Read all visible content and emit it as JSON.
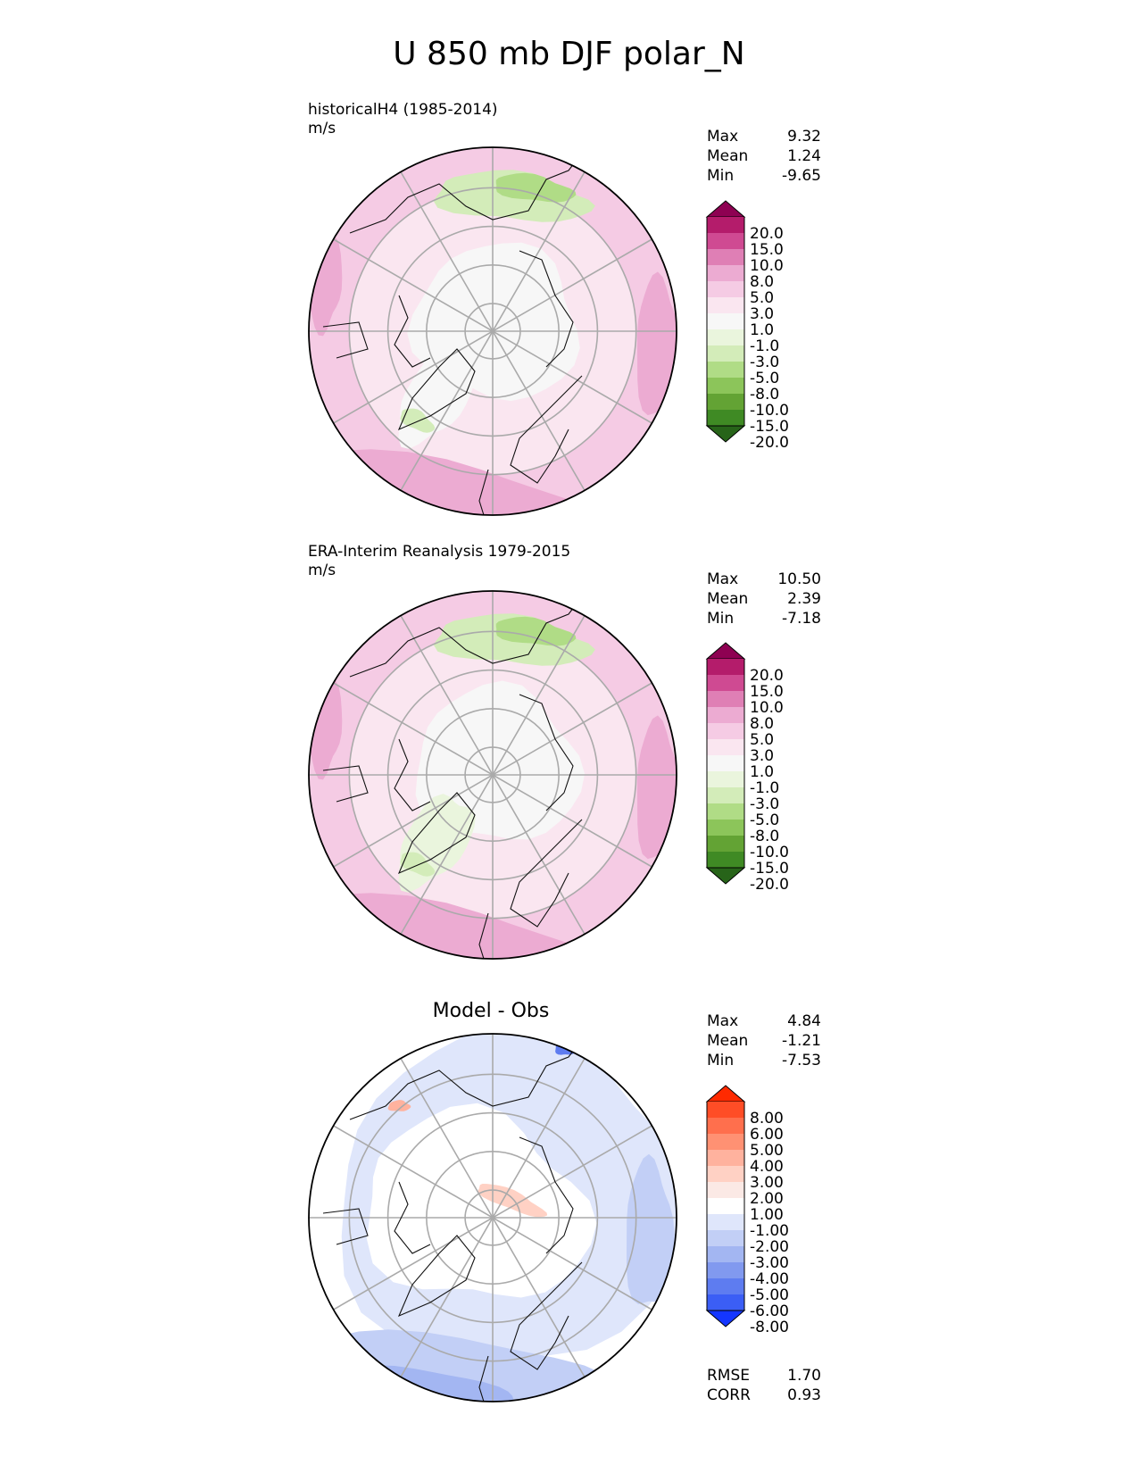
{
  "title": "U 850 mb DJF polar_N",
  "panels": [
    {
      "label_line1": "historicalH4 (1985-2014)",
      "label_line2": "m/s",
      "stats": {
        "max_label": "Max",
        "max": "9.32",
        "mean_label": "Mean",
        "mean": "1.24",
        "min_label": "Min",
        "min": "-9.65"
      },
      "colorbar_ticks": [
        "20.0",
        "15.0",
        "10.0",
        "8.0",
        "5.0",
        "3.0",
        "1.0",
        "-1.0",
        "-3.0",
        "-5.0",
        "-8.0",
        "-10.0",
        "-15.0",
        "-20.0"
      ],
      "colors": [
        "#8e0152",
        "#b41c6b",
        "#cf4a92",
        "#df7fb5",
        "#ecabd2",
        "#f5cbe4",
        "#fae6f0",
        "#f7f7f7",
        "#eaf5dd",
        "#d3ecb9",
        "#b0dc86",
        "#8cc55a",
        "#63a334",
        "#3f8a24",
        "#276419"
      ]
    },
    {
      "label_line1": "ERA-Interim Reanalysis 1979-2015",
      "label_line2": "m/s",
      "stats": {
        "max_label": "Max",
        "max": "10.50",
        "mean_label": "Mean",
        "mean": "2.39",
        "min_label": "Min",
        "min": "-7.18"
      },
      "colorbar_ticks": [
        "20.0",
        "15.0",
        "10.0",
        "8.0",
        "5.0",
        "3.0",
        "1.0",
        "-1.0",
        "-3.0",
        "-5.0",
        "-8.0",
        "-10.0",
        "-15.0",
        "-20.0"
      ],
      "colors": [
        "#8e0152",
        "#b41c6b",
        "#cf4a92",
        "#df7fb5",
        "#ecabd2",
        "#f5cbe4",
        "#fae6f0",
        "#f7f7f7",
        "#eaf5dd",
        "#d3ecb9",
        "#b0dc86",
        "#8cc55a",
        "#63a334",
        "#3f8a24",
        "#276419"
      ]
    },
    {
      "label_center": "Model - Obs",
      "stats": {
        "max_label": "Max",
        "max": "4.84",
        "mean_label": "Mean",
        "mean": "-1.21",
        "min_label": "Min",
        "min": "-7.53"
      },
      "colorbar_ticks": [
        "8.00",
        "6.00",
        "5.00",
        "4.00",
        "3.00",
        "2.00",
        "1.00",
        "-1.00",
        "-2.00",
        "-3.00",
        "-4.00",
        "-5.00",
        "-6.00",
        "-8.00"
      ],
      "colors": [
        "#ff2a00",
        "#ff4d26",
        "#ff6f4d",
        "#ff9173",
        "#ffb29e",
        "#ffd1c4",
        "#fbe9e5",
        "#ffffff",
        "#dfe6fb",
        "#c2cff6",
        "#a3b6f2",
        "#8199ef",
        "#5e7cf0",
        "#3b5ef5",
        "#1436ff"
      ],
      "rmse_label": "RMSE",
      "rmse": "1.70",
      "corr_label": "CORR",
      "corr": "0.93"
    }
  ]
}
